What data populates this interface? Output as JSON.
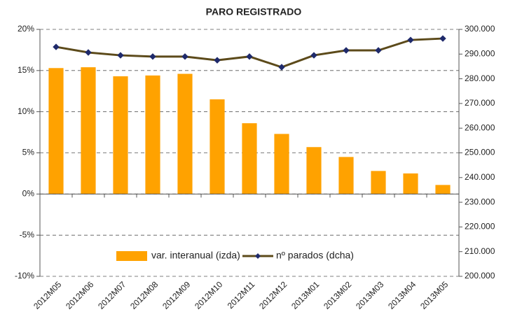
{
  "chart_data": {
    "type": "bar",
    "title": "PARO REGISTRADO",
    "categories": [
      "2012M05",
      "2012M06",
      "2012M07",
      "2012M08",
      "2012M09",
      "2012M10",
      "2012M11",
      "2012M12",
      "2013M01",
      "2013M02",
      "2013M03",
      "2013M04",
      "2013M05"
    ],
    "series": [
      {
        "name": "var. interanual (izda)",
        "type": "bar",
        "axis": "y",
        "color": "#ffa200",
        "values": [
          15.3,
          15.4,
          14.3,
          14.4,
          14.6,
          11.5,
          8.6,
          7.3,
          5.7,
          4.5,
          2.8,
          2.5,
          1.1
        ]
      },
      {
        "name": "nº parados (dcha)",
        "type": "line",
        "axis": "y2",
        "color": "#5c4a1a",
        "marker_color": "#1f2a6b",
        "values": [
          292900,
          290650,
          289500,
          289000,
          289000,
          287500,
          289000,
          284700,
          289500,
          291500,
          291500,
          295700,
          296300
        ]
      }
    ],
    "ylim": [
      -10,
      20
    ],
    "yticks": [
      {
        "value": -10,
        "label": "-10%"
      },
      {
        "value": -5,
        "label": "-5%"
      },
      {
        "value": 0,
        "label": "0%"
      },
      {
        "value": 5,
        "label": "5%"
      },
      {
        "value": 10,
        "label": "10%"
      },
      {
        "value": 15,
        "label": "15%"
      },
      {
        "value": 20,
        "label": "20%"
      }
    ],
    "y2lim": [
      200000,
      300000
    ],
    "y2ticks": [
      {
        "value": 200000,
        "label": "200.000"
      },
      {
        "value": 210000,
        "label": "210.000"
      },
      {
        "value": 220000,
        "label": "220.000"
      },
      {
        "value": 230000,
        "label": "230.000"
      },
      {
        "value": 240000,
        "label": "240.000"
      },
      {
        "value": 250000,
        "label": "250.000"
      },
      {
        "value": 260000,
        "label": "260.000"
      },
      {
        "value": 270000,
        "label": "270.000"
      },
      {
        "value": 280000,
        "label": "280.000"
      },
      {
        "value": 290000,
        "label": "290.000"
      },
      {
        "value": 300000,
        "label": "300.000"
      }
    ],
    "grid": true
  }
}
